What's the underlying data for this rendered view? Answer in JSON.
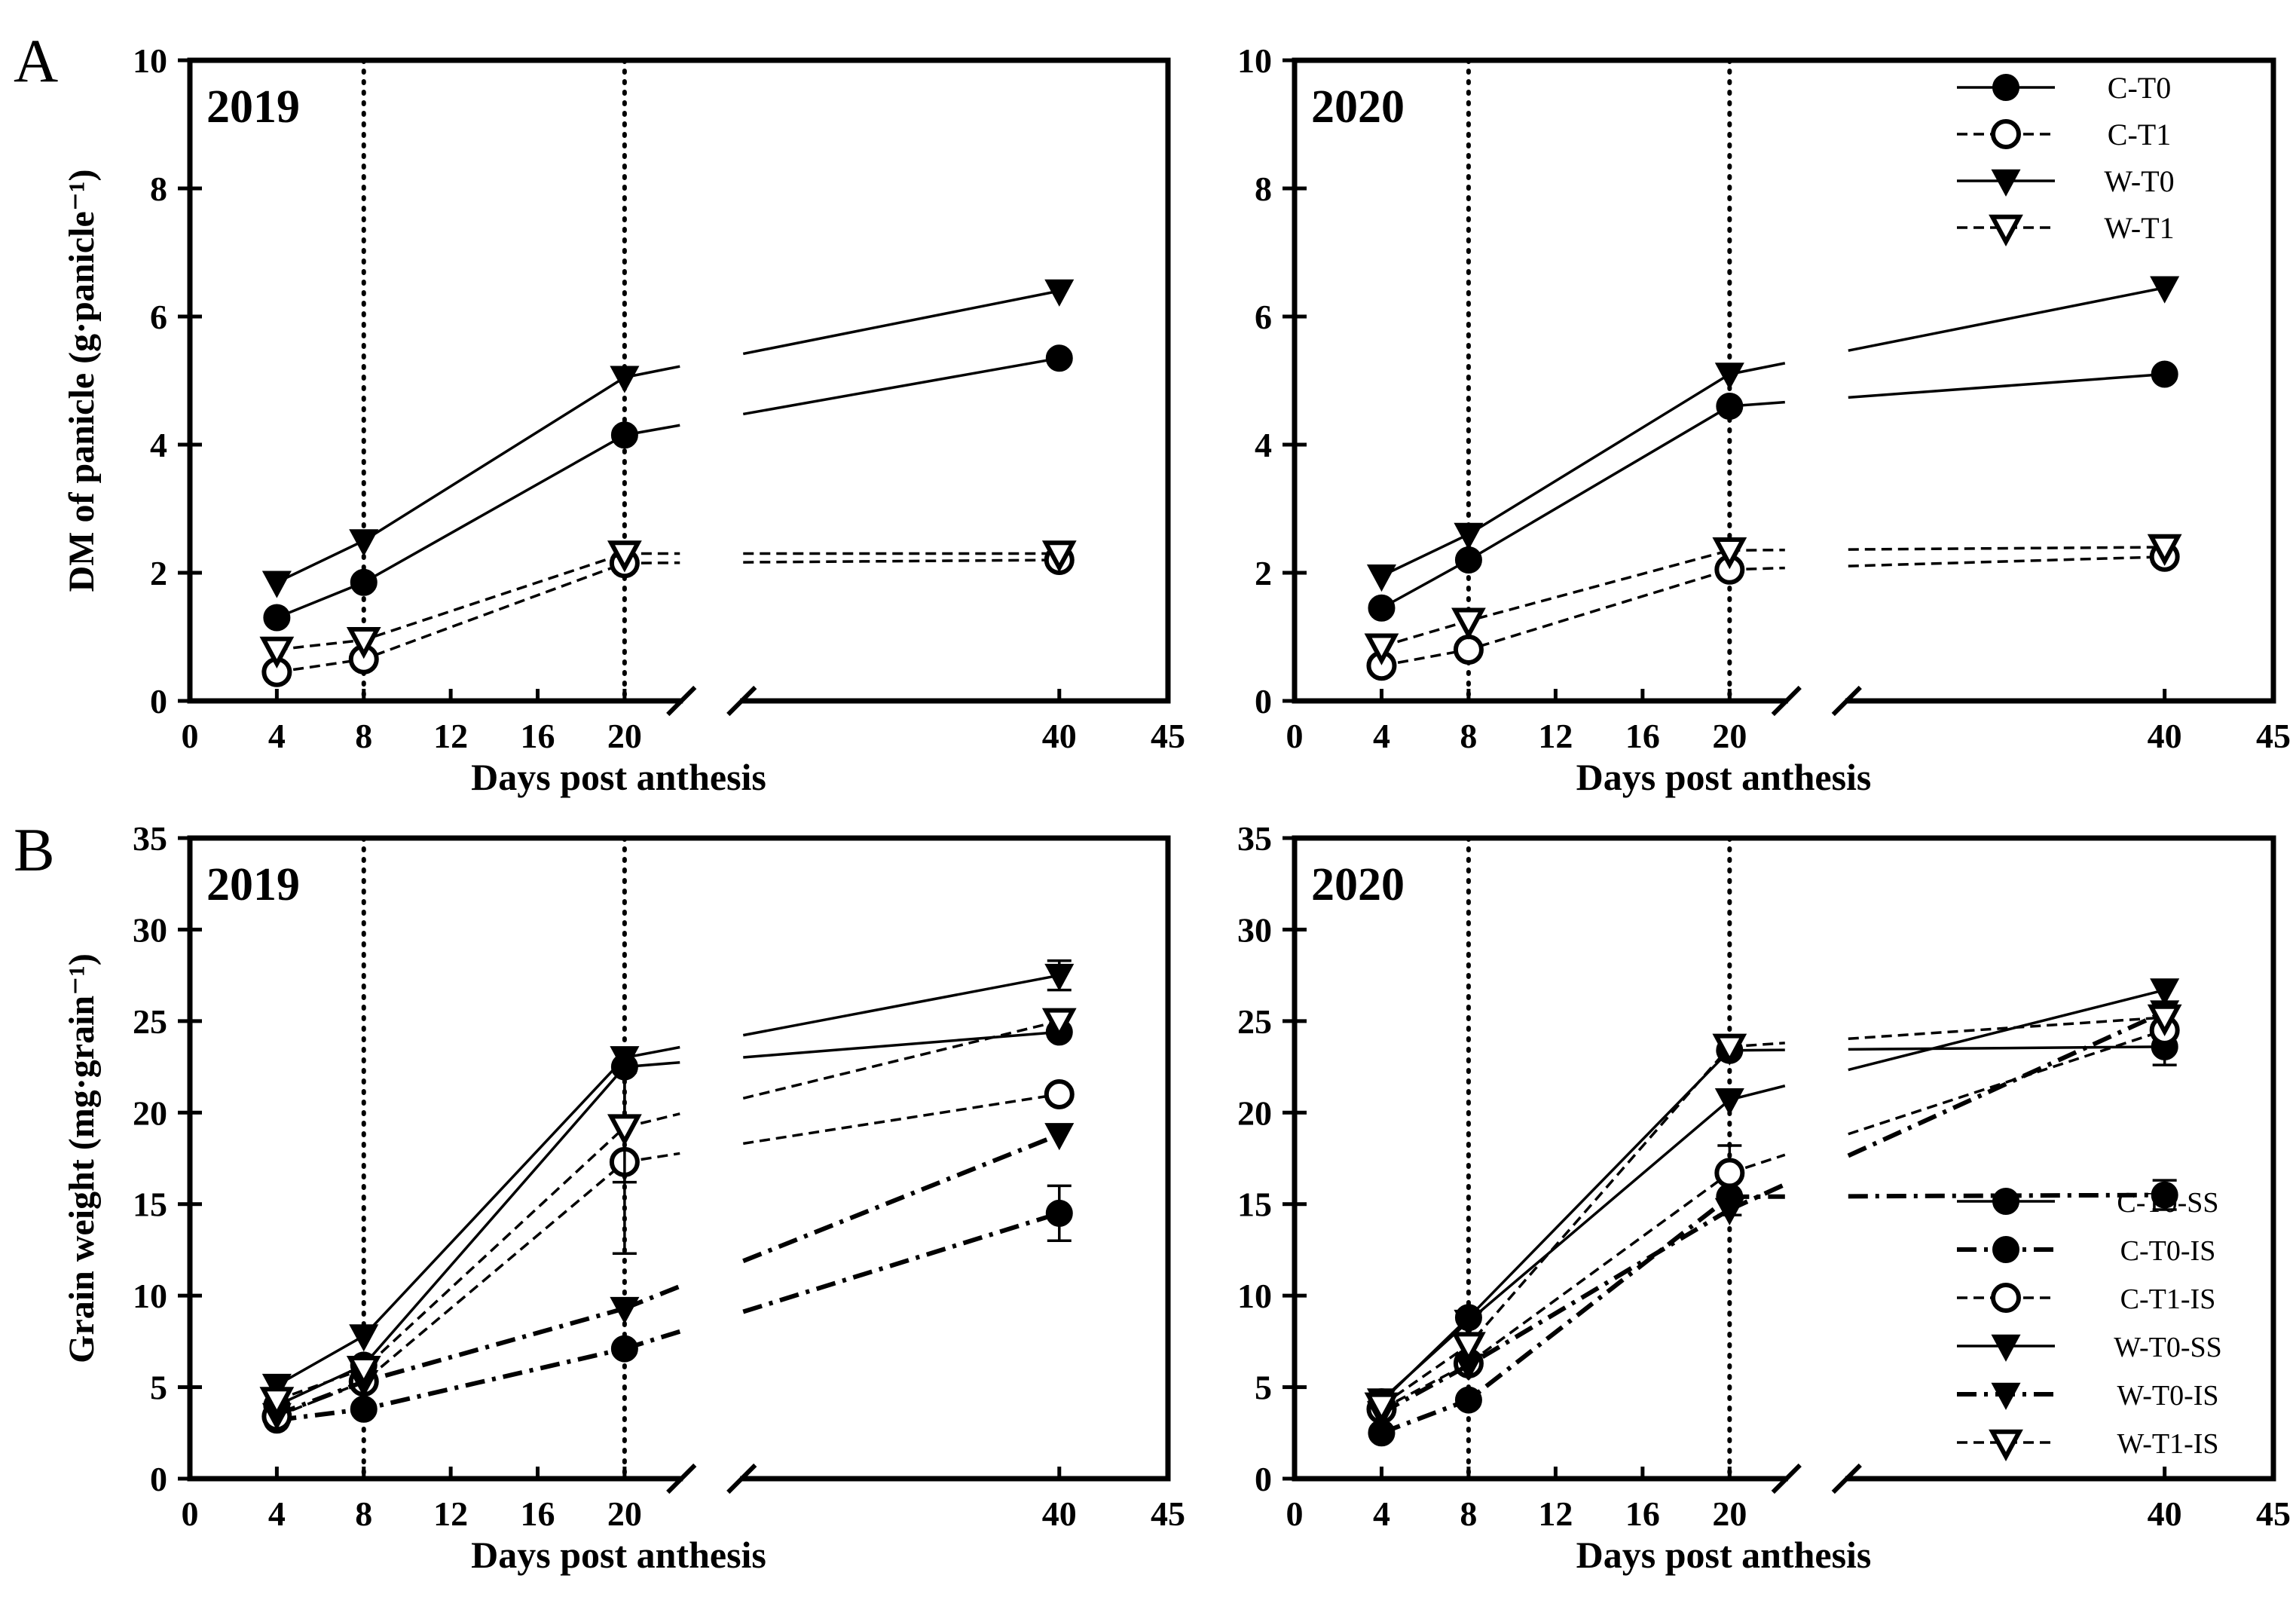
{
  "figure": {
    "panel_letters": [
      "A",
      "B"
    ]
  },
  "chart_data": [
    {
      "id": "A2019",
      "type": "line",
      "title": "2019",
      "xlabel": "Days post  anthesis",
      "ylabel": "DM of panicle (g·panicle⁻¹)",
      "xlim": [
        0,
        45
      ],
      "ylim": [
        0,
        10
      ],
      "xticks": [
        0,
        4,
        8,
        12,
        16,
        20,
        40,
        45
      ],
      "yticks": [
        0,
        2,
        4,
        6,
        8,
        10
      ],
      "x": [
        4,
        8,
        20,
        40
      ],
      "vlines": [
        8,
        20
      ],
      "axis_break": true,
      "grid": false,
      "legend": null,
      "series": [
        {
          "name": "C-T0",
          "values": [
            1.3,
            1.85,
            4.15,
            5.35
          ],
          "marker": "circle",
          "filled": true,
          "dash": "solid"
        },
        {
          "name": "C-T1",
          "values": [
            0.45,
            0.65,
            2.15,
            2.2
          ],
          "marker": "circle",
          "filled": false,
          "dash": "dash"
        },
        {
          "name": "W-T0",
          "values": [
            1.85,
            2.5,
            5.05,
            6.4
          ],
          "marker": "triangle",
          "filled": true,
          "dash": "solid"
        },
        {
          "name": "W-T1",
          "values": [
            0.8,
            0.95,
            2.3,
            2.3
          ],
          "marker": "triangle",
          "filled": false,
          "dash": "dash"
        }
      ]
    },
    {
      "id": "A2020",
      "type": "line",
      "title": "2020",
      "xlabel": "Days post  anthesis",
      "ylabel": "",
      "xlim": [
        0,
        45
      ],
      "ylim": [
        0,
        10
      ],
      "xticks": [
        0,
        4,
        8,
        12,
        16,
        20,
        40,
        45
      ],
      "yticks": [
        0,
        2,
        4,
        6,
        8,
        10
      ],
      "x": [
        4,
        8,
        20,
        40
      ],
      "vlines": [
        8,
        20
      ],
      "axis_break": true,
      "grid": false,
      "legend": "top-right",
      "series": [
        {
          "name": "C-T0",
          "values": [
            1.45,
            2.2,
            4.6,
            5.1
          ],
          "marker": "circle",
          "filled": true,
          "dash": "solid"
        },
        {
          "name": "C-T1",
          "values": [
            0.55,
            0.8,
            2.05,
            2.25
          ],
          "marker": "circle",
          "filled": false,
          "dash": "dash"
        },
        {
          "name": "W-T0",
          "values": [
            1.95,
            2.6,
            5.1,
            6.45
          ],
          "marker": "triangle",
          "filled": true,
          "dash": "solid"
        },
        {
          "name": "W-T1",
          "values": [
            0.85,
            1.25,
            2.35,
            2.4
          ],
          "marker": "triangle",
          "filled": false,
          "dash": "dash"
        }
      ]
    },
    {
      "id": "B2019",
      "type": "line",
      "title": "2019",
      "xlabel": "Days post  anthesis",
      "ylabel": "Grain weight (mg·grain⁻¹)",
      "xlim": [
        0,
        45
      ],
      "ylim": [
        0,
        35
      ],
      "xticks": [
        0,
        4,
        8,
        12,
        16,
        20,
        40,
        45
      ],
      "yticks": [
        0,
        5,
        10,
        15,
        20,
        25,
        30,
        35
      ],
      "x": [
        4,
        8,
        20,
        40
      ],
      "vlines": [
        8,
        20
      ],
      "axis_break": true,
      "grid": false,
      "legend": null,
      "series": [
        {
          "name": "C-T0-SS",
          "values": [
            4.0,
            6.2,
            22.5,
            24.4
          ],
          "marker": "circle",
          "filled": true,
          "dash": "solid"
        },
        {
          "name": "C-T0-IS",
          "values": [
            3.2,
            3.8,
            7.1,
            14.5
          ],
          "marker": "circle",
          "filled": true,
          "dash": "dashdot",
          "errors": [
            0,
            0,
            0,
            1.5
          ]
        },
        {
          "name": "C-T1-IS",
          "values": [
            3.4,
            5.3,
            17.3,
            21.0
          ],
          "marker": "circle",
          "filled": false,
          "dash": "dash",
          "errors": [
            0,
            0,
            5.0,
            0
          ]
        },
        {
          "name": "W-T0-SS",
          "values": [
            5.1,
            7.8,
            23.0,
            27.5
          ],
          "marker": "triangle",
          "filled": true,
          "dash": "solid",
          "errors": [
            0,
            0,
            0,
            0.8
          ]
        },
        {
          "name": "W-T0-IS",
          "values": [
            3.5,
            5.3,
            9.3,
            18.8
          ],
          "marker": "triangle",
          "filled": true,
          "dash": "dashdot"
        },
        {
          "name": "W-T1-IS",
          "values": [
            4.3,
            6.0,
            19.2,
            25.0
          ],
          "marker": "triangle",
          "filled": false,
          "dash": "dash",
          "errors": [
            0,
            0,
            3.0,
            0
          ]
        }
      ]
    },
    {
      "id": "B2020",
      "type": "line",
      "title": "2020",
      "xlabel": "Days post  anthesis",
      "ylabel": "",
      "xlim": [
        0,
        45
      ],
      "ylim": [
        0,
        35
      ],
      "xticks": [
        0,
        4,
        8,
        12,
        16,
        20,
        40,
        45
      ],
      "yticks": [
        0,
        5,
        10,
        15,
        20,
        25,
        30,
        35
      ],
      "x": [
        4,
        8,
        20,
        40
      ],
      "vlines": [
        8,
        20
      ],
      "axis_break": true,
      "grid": false,
      "legend": "bottom-right",
      "series": [
        {
          "name": "C-T0-SS",
          "values": [
            4.2,
            8.8,
            23.4,
            23.6
          ],
          "marker": "circle",
          "filled": true,
          "dash": "solid",
          "errors": [
            0,
            0,
            0,
            1.0
          ]
        },
        {
          "name": "C-T0-IS",
          "values": [
            2.5,
            4.3,
            15.4,
            15.5
          ],
          "marker": "circle",
          "filled": true,
          "dash": "dashdot",
          "errors": [
            0,
            0,
            1.0,
            0.8
          ]
        },
        {
          "name": "C-T1-IS",
          "values": [
            3.8,
            6.3,
            16.7,
            24.5
          ],
          "marker": "circle",
          "filled": false,
          "dash": "dash",
          "errors": [
            0,
            0,
            1.5,
            0
          ]
        },
        {
          "name": "W-T0-SS",
          "values": [
            4.3,
            8.6,
            20.7,
            26.7
          ],
          "marker": "triangle",
          "filled": true,
          "dash": "solid"
        },
        {
          "name": "W-T0-IS",
          "values": [
            3.6,
            6.2,
            14.7,
            25.5
          ],
          "marker": "triangle",
          "filled": true,
          "dash": "dashdot"
        },
        {
          "name": "W-T1-IS",
          "values": [
            4.0,
            7.3,
            23.6,
            25.2
          ],
          "marker": "triangle",
          "filled": false,
          "dash": "dash"
        }
      ]
    }
  ]
}
